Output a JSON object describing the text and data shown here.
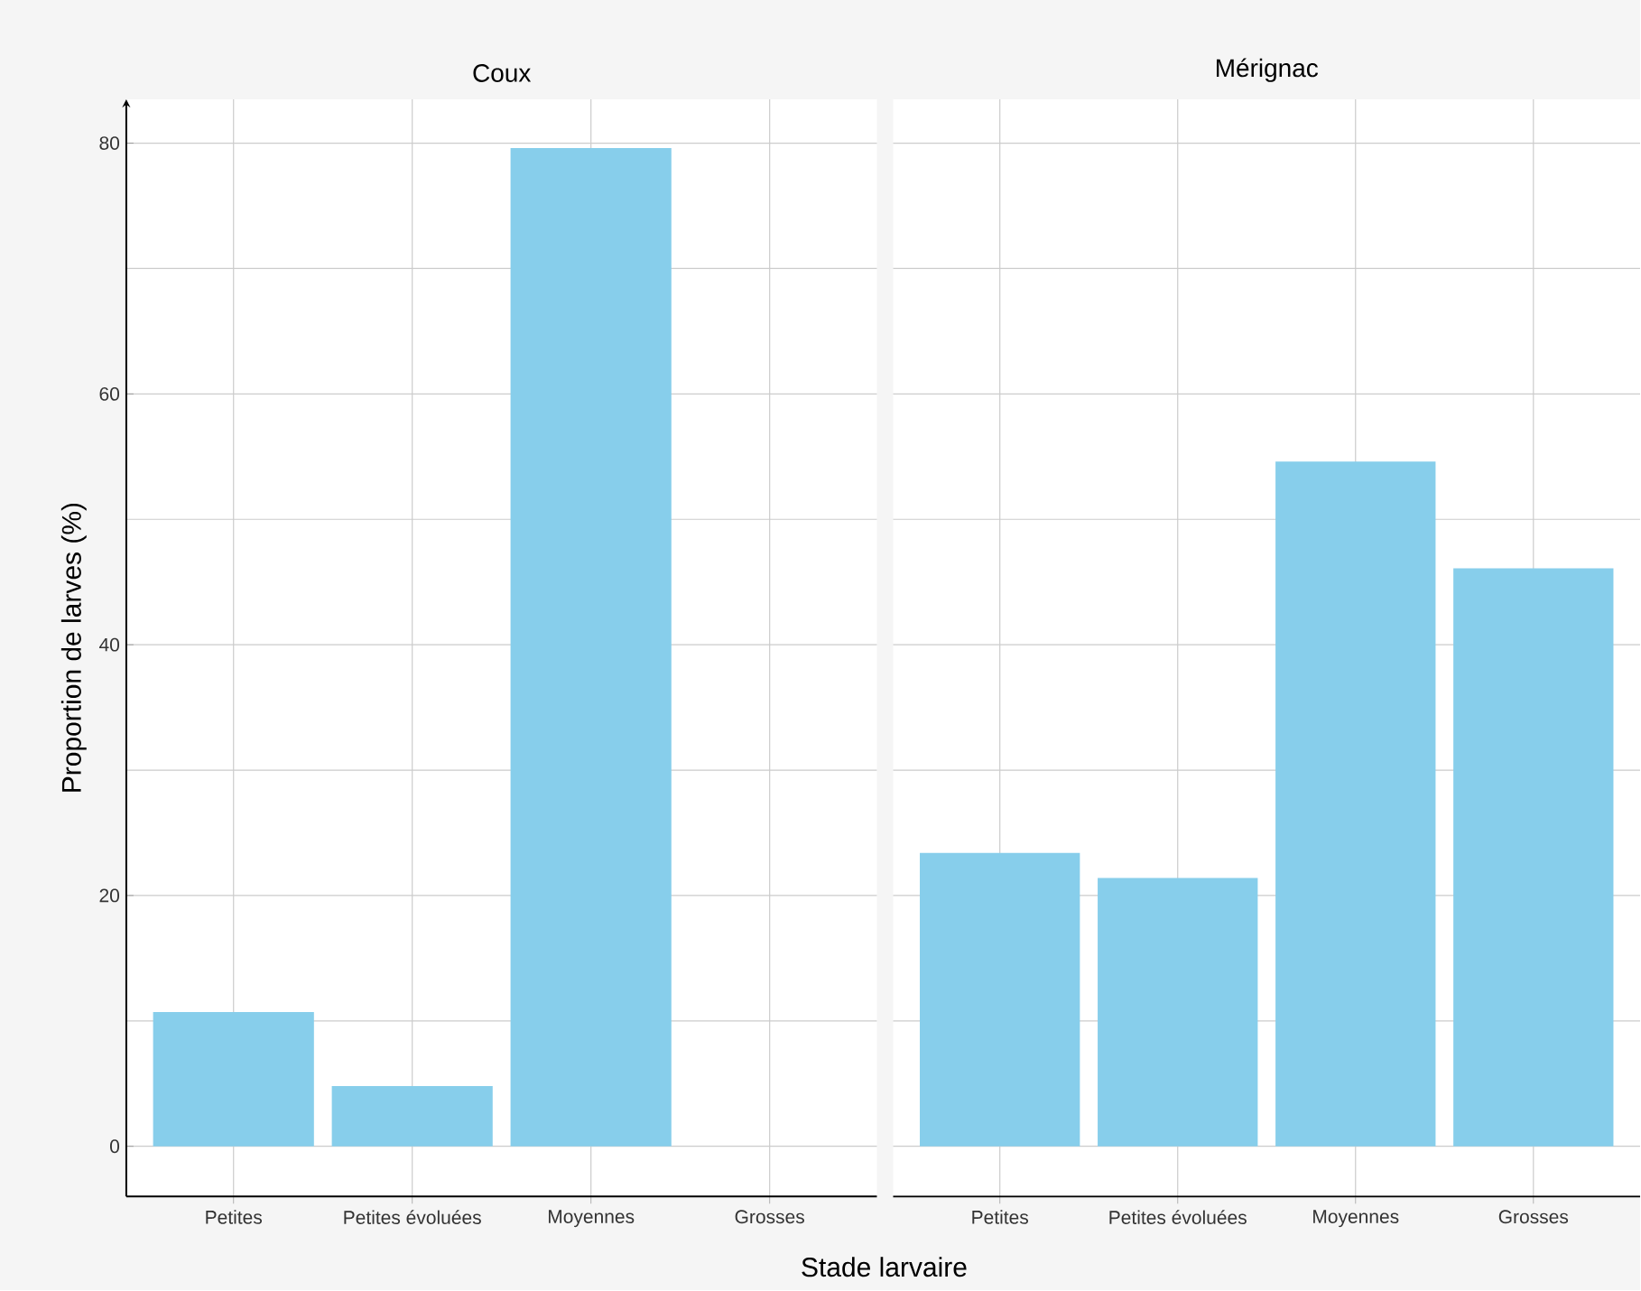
{
  "chart_data": [
    {
      "type": "bar",
      "title": "Coux",
      "xlabel": "Stade larvaire",
      "ylabel": "Proportion de larves (%)",
      "categories": [
        "Petites",
        "Petites évoluées",
        "Moyennes",
        "Grosses"
      ],
      "values": [
        10.7,
        4.8,
        79.6,
        0
      ],
      "color": "#87ceeb",
      "ylim": [
        -4,
        83.5
      ],
      "yticks": [
        0,
        {
          "value": 10,
          "label": null
        },
        20,
        {
          "value": 30,
          "label": null
        },
        40,
        {
          "value": 50,
          "label": null
        },
        60,
        {
          "value": 70,
          "label": null
        },
        80
      ],
      "grid": true
    },
    {
      "type": "bar",
      "title": "Mérignac",
      "categories": [
        "Petites",
        "Petites évoluées",
        "Moyennes",
        "Grosses"
      ],
      "values": [
        23.4,
        21.4,
        54.6,
        46.1
      ],
      "color": "#87ceeb",
      "ylim": [
        -4,
        83.5
      ],
      "yticks": [
        0,
        {
          "value": 10,
          "label": null
        },
        20,
        {
          "value": 30,
          "label": null
        },
        40,
        {
          "value": 50,
          "label": null
        },
        60,
        {
          "value": 70,
          "label": null
        },
        80
      ],
      "grid": true,
      "tick_labels": "x"
    }
  ]
}
